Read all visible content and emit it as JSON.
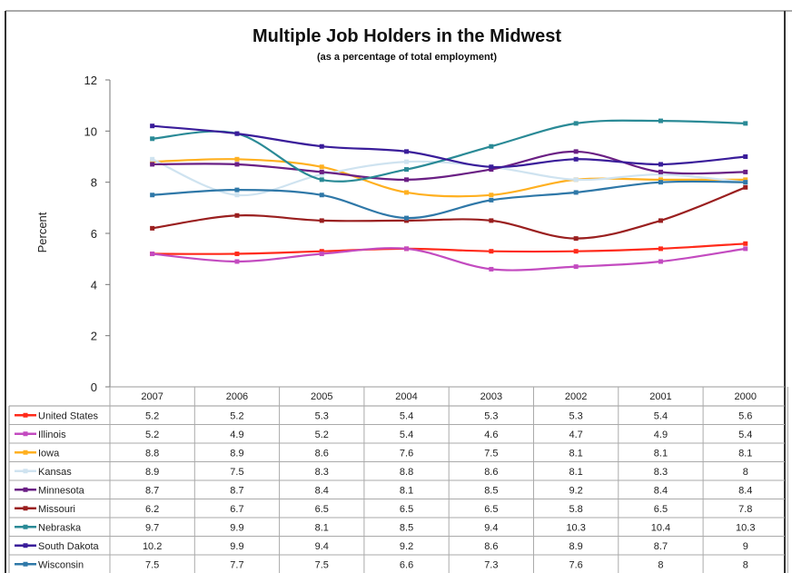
{
  "chart_data": {
    "type": "line",
    "title": "Multiple Job Holders in the Midwest",
    "subtitle": "(as a percentage of total employment)",
    "xlabel": "",
    "ylabel": "Percent",
    "ylim": [
      0,
      12
    ],
    "yticks": [
      "0",
      "2",
      "4",
      "6",
      "8",
      "10",
      "12"
    ],
    "categories": [
      "2007",
      "2006",
      "2005",
      "2004",
      "2003",
      "2002",
      "2001",
      "2000"
    ],
    "grid": false,
    "legend": "data-table-left",
    "series": [
      {
        "name": "United States",
        "color": "#ff2a1a",
        "values": [
          5.2,
          5.2,
          5.3,
          5.4,
          5.3,
          5.3,
          5.4,
          5.6
        ],
        "labels": [
          "5.2",
          "5.2",
          "5.3",
          "5.4",
          "5.3",
          "5.3",
          "5.4",
          "5.6"
        ]
      },
      {
        "name": "Illinois",
        "color": "#c34bc0",
        "values": [
          5.2,
          4.9,
          5.2,
          5.4,
          4.6,
          4.7,
          4.9,
          5.4
        ],
        "labels": [
          "5.2",
          "4.9",
          "5.2",
          "5.4",
          "4.6",
          "4.7",
          "4.9",
          "5.4"
        ]
      },
      {
        "name": "Iowa",
        "color": "#ffb020",
        "values": [
          8.8,
          8.9,
          8.6,
          7.6,
          7.5,
          8.1,
          8.1,
          8.1
        ],
        "labels": [
          "8.8",
          "8.9",
          "8.6",
          "7.6",
          "7.5",
          "8.1",
          "8.1",
          "8.1"
        ]
      },
      {
        "name": "Kansas",
        "color": "#cfe3f0",
        "values": [
          8.9,
          7.5,
          8.3,
          8.8,
          8.6,
          8.1,
          8.3,
          8
        ],
        "labels": [
          "8.9",
          "7.5",
          "8.3",
          "8.8",
          "8.6",
          "8.1",
          "8.3",
          "8"
        ]
      },
      {
        "name": "Minnesota",
        "color": "#6a1f84",
        "values": [
          8.7,
          8.7,
          8.4,
          8.1,
          8.5,
          9.2,
          8.4,
          8.4
        ],
        "labels": [
          "8.7",
          "8.7",
          "8.4",
          "8.1",
          "8.5",
          "9.2",
          "8.4",
          "8.4"
        ]
      },
      {
        "name": "Missouri",
        "color": "#9a1f1f",
        "values": [
          6.2,
          6.7,
          6.5,
          6.5,
          6.5,
          5.8,
          6.5,
          7.8
        ],
        "labels": [
          "6.2",
          "6.7",
          "6.5",
          "6.5",
          "6.5",
          "5.8",
          "6.5",
          "7.8"
        ]
      },
      {
        "name": "Nebraska",
        "color": "#2a8a96",
        "values": [
          9.7,
          9.9,
          8.1,
          8.5,
          9.4,
          10.3,
          10.4,
          10.3
        ],
        "labels": [
          "9.7",
          "9.9",
          "8.1",
          "8.5",
          "9.4",
          "10.3",
          "10.4",
          "10.3"
        ]
      },
      {
        "name": "South Dakota",
        "color": "#3a1d9a",
        "values": [
          10.2,
          9.9,
          9.4,
          9.2,
          8.6,
          8.9,
          8.7,
          9
        ],
        "labels": [
          "10.2",
          "9.9",
          "9.4",
          "9.2",
          "8.6",
          "8.9",
          "8.7",
          "9"
        ]
      },
      {
        "name": "Wisconsin",
        "color": "#2f78a8",
        "values": [
          7.5,
          7.7,
          7.5,
          6.6,
          7.3,
          7.6,
          8,
          8
        ],
        "labels": [
          "7.5",
          "7.7",
          "7.5",
          "6.6",
          "7.3",
          "7.6",
          "8",
          "8"
        ]
      }
    ]
  }
}
